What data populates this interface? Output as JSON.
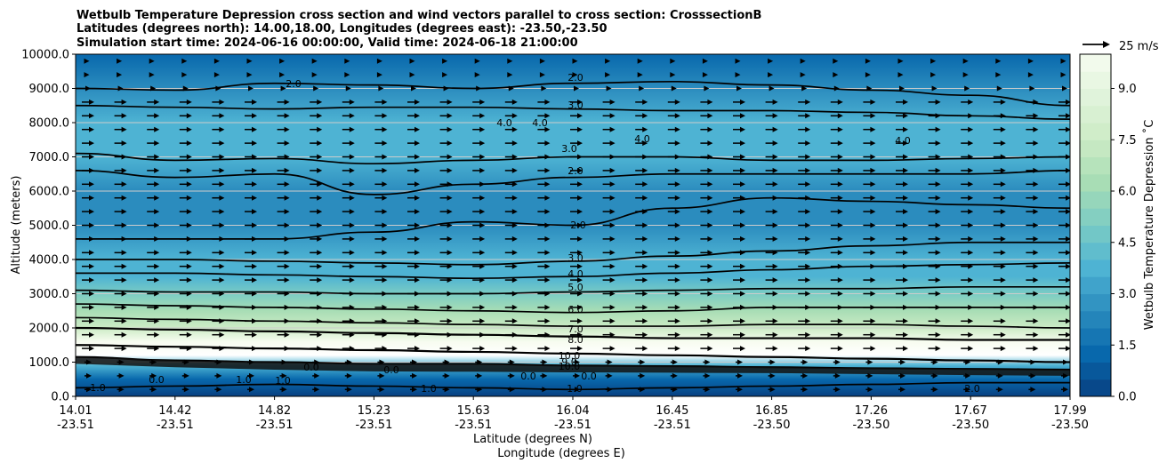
{
  "chart_data": {
    "type": "contour",
    "title_lines": [
      "Wetbulb Temperature Depression cross section and wind vectors parallel to cross section: CrosssectionB",
      "Latitudes (degrees north): 14.00,18.00, Longitudes (degrees east): -23.50,-23.50",
      "Simulation start time: 2024-06-16 00:00:00, Valid time: 2024-06-18 21:00:00"
    ],
    "ylabel": "Altitude (meters)",
    "xlabel_lat": "Latitude (degrees N)",
    "xlabel_lon": "Longitude (degrees E)",
    "ylim": [
      0,
      10000
    ],
    "y_ticks": [
      "0.0",
      "1000.0",
      "2000.0",
      "3000.0",
      "4000.0",
      "5000.0",
      "6000.0",
      "7000.0",
      "8000.0",
      "9000.0",
      "10000.0"
    ],
    "x_ticks": [
      {
        "lat": "14.01",
        "lon": "-23.51"
      },
      {
        "lat": "14.42",
        "lon": "-23.51"
      },
      {
        "lat": "14.82",
        "lon": "-23.51"
      },
      {
        "lat": "15.23",
        "lon": "-23.51"
      },
      {
        "lat": "15.63",
        "lon": "-23.51"
      },
      {
        "lat": "16.04",
        "lon": "-23.51"
      },
      {
        "lat": "16.45",
        "lon": "-23.51"
      },
      {
        "lat": "16.85",
        "lon": "-23.50"
      },
      {
        "lat": "17.26",
        "lon": "-23.50"
      },
      {
        "lat": "17.67",
        "lon": "-23.50"
      },
      {
        "lat": "17.99",
        "lon": "-23.50"
      }
    ],
    "grid": "horizontal",
    "colorbar": {
      "label": "Wetbulb Temperature Depression ˚C",
      "ticks": [
        "0.0",
        "1.5",
        "3.0",
        "4.5",
        "6.0",
        "7.5",
        "9.0"
      ],
      "range": [
        0,
        10
      ],
      "colormap": [
        "#084081",
        "#0868ac",
        "#2b8cbe",
        "#4eb3d3",
        "#7bccc4",
        "#a8ddb5",
        "#ccebc5",
        "#e0f3db",
        "#f7fcf0"
      ]
    },
    "quiver_key": {
      "label": "25 m/s"
    },
    "profile": [
      {
        "alt": 0,
        "depression": 0.3
      },
      {
        "alt": 500,
        "depression": 0.8
      },
      {
        "alt": 900,
        "depression": 4.0
      },
      {
        "alt": 1200,
        "depression": 10.0
      },
      {
        "alt": 1600,
        "depression": 9.6
      },
      {
        "alt": 2000,
        "depression": 8.0
      },
      {
        "alt": 2500,
        "depression": 6.5
      },
      {
        "alt": 3000,
        "depression": 5.0
      },
      {
        "alt": 3500,
        "depression": 4.0
      },
      {
        "alt": 4000,
        "depression": 3.3
      },
      {
        "alt": 5000,
        "depression": 2.5
      },
      {
        "alt": 6000,
        "depression": 2.3
      },
      {
        "alt": 7000,
        "depression": 3.2
      },
      {
        "alt": 8000,
        "depression": 3.6
      },
      {
        "alt": 9000,
        "depression": 2.1
      },
      {
        "alt": 10000,
        "depression": 1.6
      }
    ],
    "contours": [
      {
        "label": "2.0",
        "alt": [
          9000,
          8950,
          9150,
          9100,
          9000,
          9150,
          9200,
          9100,
          8950,
          8800,
          8500
        ]
      },
      {
        "label": "3.0",
        "alt": [
          8500,
          8450,
          8400,
          8450,
          8450,
          8400,
          8350,
          8350,
          8300,
          8200,
          8100
        ]
      },
      {
        "label": "3.0",
        "alt": [
          7100,
          6900,
          6950,
          6800,
          6900,
          7000,
          7000,
          6900,
          6900,
          6950,
          7000
        ]
      },
      {
        "label": "2.0",
        "alt": [
          6600,
          6400,
          6500,
          5900,
          6200,
          6400,
          6500,
          6500,
          6500,
          6500,
          6600
        ]
      },
      {
        "label": "2.0",
        "alt": [
          4600,
          4600,
          4600,
          4800,
          5100,
          5000,
          5500,
          5800,
          5700,
          5600,
          5500
        ]
      },
      {
        "label": "3.0",
        "alt": [
          4000,
          4000,
          3950,
          3900,
          3850,
          3950,
          4100,
          4250,
          4400,
          4500,
          4500
        ]
      },
      {
        "label": "4.0",
        "alt": [
          3600,
          3600,
          3550,
          3500,
          3450,
          3500,
          3600,
          3700,
          3800,
          3850,
          3900
        ]
      },
      {
        "label": "5.0",
        "alt": [
          3100,
          3050,
          3050,
          3000,
          3000,
          3050,
          3100,
          3150,
          3150,
          3200,
          3200
        ]
      },
      {
        "label": "6.0",
        "alt": [
          2700,
          2650,
          2600,
          2550,
          2500,
          2450,
          2500,
          2600,
          2600,
          2600,
          2600
        ]
      },
      {
        "label": "7.0",
        "alt": [
          2300,
          2250,
          2200,
          2150,
          2100,
          2050,
          2050,
          2100,
          2100,
          2050,
          2000
        ]
      },
      {
        "label": "8.0",
        "alt": [
          2000,
          1950,
          1900,
          1850,
          1800,
          1750,
          1700,
          1700,
          1700,
          1650,
          1650
        ]
      },
      {
        "label": "10.0",
        "alt": [
          1500,
          1450,
          1400,
          1350,
          1300,
          1250,
          1200,
          1150,
          1100,
          1050,
          1000
        ]
      },
      {
        "label": "10.0",
        "alt": [
          1150,
          1050,
          1000,
          950,
          950,
          900,
          880,
          850,
          820,
          800,
          780
        ]
      },
      {
        "label": "1.0",
        "alt": [
          250,
          300,
          350,
          300,
          250,
          200,
          250,
          300,
          350,
          400,
          400
        ]
      }
    ],
    "inline_labels": [
      "2.0",
      "3.0",
      "4.0",
      "4.0",
      "4.0",
      "4.0",
      "3.0",
      "2.0",
      "2.0",
      "3.0",
      "4.0",
      "5.0",
      "6.0",
      "7.0",
      "8.0",
      "10.0",
      "10.0",
      "9.0",
      "0.0",
      "0.0",
      "0.0",
      "0.0",
      "1.0",
      "1.0",
      "1.0",
      "2.0",
      "2.0",
      "1.0",
      "1.0",
      "0.0"
    ],
    "wind": {
      "direction": "left-to-right",
      "max_speed": 25
    }
  }
}
